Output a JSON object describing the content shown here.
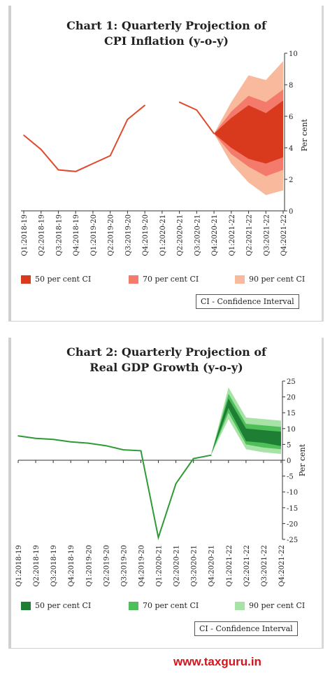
{
  "chart_data": [
    {
      "type": "line",
      "title_line1": "Chart 1: Quarterly Projection of",
      "title_line2": "CPI Inflation (y-o-y)",
      "ylabel": "Per cent",
      "ylim": [
        0,
        10
      ],
      "yticks": [
        0,
        2,
        4,
        6,
        8,
        10
      ],
      "y_axis_side": "right",
      "categories": [
        "Q1:2018-19",
        "Q2:2018-19",
        "Q3:2018-19",
        "Q4:2018-19",
        "Q1:2019-20",
        "Q2:2019-20",
        "Q3:2019-20",
        "Q4:2019-20",
        "Q1:2020-21",
        "Q2:2020-21",
        "Q3:2020-21",
        "Q4:2020-21",
        "Q1:2021-22",
        "Q2:2021-22",
        "Q3:2021-22",
        "Q4:2021-22"
      ],
      "actual": [
        4.8,
        3.9,
        2.6,
        2.5,
        3.0,
        3.5,
        5.8,
        6.7,
        null,
        6.9,
        6.4,
        4.9,
        null,
        null,
        null,
        null
      ],
      "fan_start_index": 11,
      "bands": [
        {
          "name": "90 per cent CI",
          "color": "#f9b99c",
          "lower": [
            4.9,
            3.0,
            1.8,
            1.0,
            1.3
          ],
          "upper": [
            4.9,
            6.9,
            8.6,
            8.3,
            9.5
          ]
        },
        {
          "name": "70 per cent CI",
          "color": "#f47a6c",
          "lower": [
            4.9,
            3.6,
            2.8,
            2.2,
            2.6
          ],
          "upper": [
            4.9,
            6.3,
            7.3,
            6.9,
            7.7
          ]
        },
        {
          "name": "50 per cent CI",
          "color": "#d93a1e",
          "lower": [
            4.9,
            4.0,
            3.3,
            3.0,
            3.4
          ],
          "upper": [
            4.9,
            5.9,
            6.7,
            6.2,
            7.0
          ]
        }
      ],
      "line_color": "#e0492e",
      "legend": [
        "50 per cent CI",
        "70 per cent CI",
        "90 per cent CI"
      ],
      "legend_colors": [
        "#d93a1e",
        "#f47a6c",
        "#f9b99c"
      ],
      "note": "CI - Confidence Interval"
    },
    {
      "type": "line",
      "title_line1": "Chart 2: Quarterly Projection of",
      "title_line2": "Real GDP Growth (y-o-y)",
      "ylabel": "Per cent",
      "ylim": [
        -25,
        25
      ],
      "yticks": [
        -25,
        -20,
        -15,
        -10,
        -5,
        0,
        5,
        10,
        15,
        20,
        25
      ],
      "y_axis_side": "right",
      "categories": [
        "Q1:2018-19",
        "Q2:2018-19",
        "Q3:2018-19",
        "Q4:2018-19",
        "Q1:2019-20",
        "Q2:2019-20",
        "Q3:2019-20",
        "Q4:2019-20",
        "Q1:2020-21",
        "Q2:2020-21",
        "Q3:2020-21",
        "Q4:2020-21",
        "Q1:2021-22",
        "Q2:2021-22",
        "Q3:2021-22",
        "Q4:2021-22"
      ],
      "actual": [
        7.7,
        6.9,
        6.6,
        5.8,
        5.4,
        4.6,
        3.3,
        3.0,
        -24.4,
        -7.4,
        0.5,
        1.6,
        null,
        null,
        null,
        null
      ],
      "fan_start_index": 11,
      "bands": [
        {
          "name": "90 per cent CI",
          "color": "#a7e3a7",
          "lower": [
            1.6,
            13.0,
            3.5,
            2.5,
            2.0
          ],
          "upper": [
            1.6,
            23.0,
            13.5,
            13.0,
            12.5
          ]
        },
        {
          "name": "70 per cent CI",
          "color": "#4fbf5a",
          "lower": [
            1.6,
            15.0,
            5.0,
            4.0,
            3.5
          ],
          "upper": [
            1.6,
            21.0,
            11.5,
            11.0,
            10.5
          ]
        },
        {
          "name": "50 per cent CI",
          "color": "#1e7f34",
          "lower": [
            1.6,
            16.5,
            6.0,
            5.5,
            4.5
          ],
          "upper": [
            1.6,
            19.5,
            10.0,
            9.5,
            9.0
          ]
        }
      ],
      "line_color": "#2e9a35",
      "legend": [
        "50 per cent CI",
        "70 per cent CI",
        "90 per cent CI"
      ],
      "legend_colors": [
        "#1e7f34",
        "#4fbf5a",
        "#a7e3a7"
      ],
      "note": "CI - Confidence Interval"
    }
  ],
  "watermark": "www.taxguru.in"
}
